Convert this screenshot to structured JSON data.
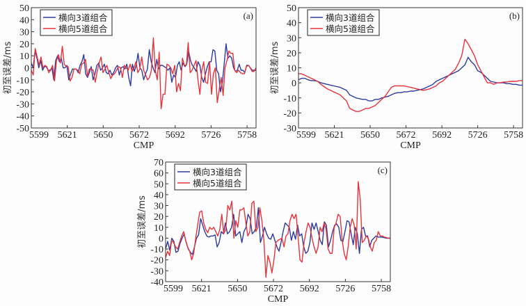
{
  "colors": {
    "blue": "#2b3a9e",
    "red": "#e8323a",
    "axis": "#333333"
  },
  "chart_data": [
    {
      "id": "a",
      "type": "line",
      "panel_label": "(a)",
      "xlabel": "CMP",
      "ylabel": "初至误差/ms",
      "ylim": [
        -50,
        50
      ],
      "yticks": [
        -50,
        -40,
        -30,
        -20,
        -10,
        0,
        10,
        20,
        30,
        40,
        50
      ],
      "xticks": [
        "5599",
        "5621",
        "5650",
        "5672",
        "5692",
        "5726",
        "5758"
      ],
      "x_extent_ticks": 6.25,
      "legend": [
        "横向3道组合",
        "横向5道组合"
      ],
      "legend_position": "top-left",
      "series": [
        {
          "name": "横向3道组合",
          "color_key": "blue",
          "values": [
            4,
            0,
            14,
            8,
            0,
            6,
            -2,
            1,
            1,
            -2,
            -2,
            0,
            -10,
            6,
            10,
            5,
            8,
            0,
            0,
            2,
            -10,
            -5,
            -1,
            -1,
            -1,
            -4,
            2,
            5,
            11,
            -5,
            -8,
            -4,
            1,
            -10,
            -5,
            2,
            4,
            -2,
            0,
            3,
            -4,
            -5,
            -2,
            -6,
            -4,
            0,
            2,
            -6,
            0,
            1,
            -1,
            3,
            -8,
            -15,
            3,
            -3,
            2,
            12,
            0,
            -2,
            -10,
            -5,
            -1,
            15,
            5,
            0,
            -4,
            7,
            -1,
            2,
            2,
            1,
            0,
            -2,
            0,
            -12,
            -6,
            -8,
            2,
            5,
            -2,
            4,
            1,
            3,
            14,
            6,
            2,
            0,
            -3,
            5,
            2,
            -8,
            -12,
            -5,
            1,
            5,
            5,
            15,
            14,
            -2,
            -5,
            -20,
            -12,
            3,
            20,
            8,
            10,
            8,
            0,
            -3,
            -2,
            3,
            -2,
            -2,
            -4,
            2,
            2,
            0,
            -2,
            -2,
            -2
          ]
        },
        {
          "name": "横向5道组合",
          "color_key": "red",
          "values": [
            -2,
            -6,
            16,
            9,
            2,
            9,
            0,
            2,
            1,
            -4,
            -2,
            2,
            -11,
            6,
            11,
            4,
            18,
            3,
            1,
            1,
            -11,
            -8,
            -1,
            -1,
            -2,
            -5,
            3,
            4,
            7,
            -7,
            -1,
            -1,
            -2,
            -12,
            -3,
            4,
            9,
            -4,
            -1,
            2,
            -4,
            -9,
            -6,
            -5,
            -2,
            1,
            0,
            -8,
            2,
            0,
            -2,
            3,
            -3,
            0,
            5,
            -4,
            -1,
            9,
            -2,
            -6,
            -10,
            -8,
            -2,
            25,
            -2,
            -10,
            13,
            -34,
            -22,
            -22,
            3,
            2,
            0,
            -5,
            2,
            -20,
            -13,
            -19,
            8,
            2,
            2,
            21,
            -4,
            -2,
            2,
            6,
            -10,
            -22,
            -2,
            5,
            -12,
            -13,
            5,
            -22,
            -5,
            0,
            -29,
            -18,
            -8,
            -23,
            0,
            6,
            14,
            12,
            12,
            -2,
            -4,
            -2,
            -4,
            -5,
            -5,
            1,
            2,
            0,
            -3,
            -3,
            0
          ]
        }
      ]
    },
    {
      "id": "b",
      "type": "line",
      "panel_label": "(b)",
      "xlabel": "CMP",
      "ylabel": "初至误差/ms",
      "ylim": [
        -30,
        50
      ],
      "yticks": [
        -30,
        -20,
        -10,
        0,
        10,
        20,
        30,
        40,
        50
      ],
      "xticks": [
        "5599",
        "5621",
        "5650",
        "5672",
        "5692",
        "5726",
        "5758"
      ],
      "x_extent_ticks": 6.25,
      "legend": [
        "横向3道组合",
        "横向5道组合"
      ],
      "legend_position": "top-left",
      "series": [
        {
          "name": "横向3道组合",
          "color_key": "blue",
          "values": [
            2,
            3,
            3,
            2,
            1.5,
            1.5,
            1,
            0,
            -0.5,
            -1,
            -1.5,
            -2,
            -2.5,
            -3,
            -4,
            -5,
            -8,
            -9,
            -10,
            -10.5,
            -11,
            -11,
            -12,
            -12,
            -11,
            -11,
            -10,
            -9.5,
            -9,
            -8,
            -7,
            -6.5,
            -6.5,
            -6,
            -6,
            -5.5,
            -5.5,
            -5,
            -4.5,
            -4,
            -3,
            -2,
            -1,
            1,
            2,
            3,
            4,
            5,
            6,
            7,
            8,
            10,
            12,
            17,
            14,
            12,
            8,
            7,
            5,
            3,
            1,
            0.5,
            0,
            0,
            0,
            -0.5,
            -0.5,
            -1,
            -1,
            -1.5,
            -1.5
          ]
        },
        {
          "name": "横向5道组合",
          "color_key": "red",
          "values": [
            6,
            6,
            5,
            4,
            3,
            2,
            1,
            -1,
            -2.5,
            -4,
            -5,
            -6,
            -7,
            -8,
            -10,
            -12,
            -17,
            -18,
            -19,
            -19,
            -18,
            -17,
            -17,
            -16,
            -15,
            -13,
            -11,
            -9,
            -6,
            -3,
            -2,
            -2,
            -2,
            -2,
            -2.5,
            -3,
            -3.5,
            -4,
            -4.5,
            -5,
            -4.5,
            -4,
            -3,
            -2,
            0,
            1,
            3,
            5,
            7,
            9,
            13,
            18,
            29,
            26,
            22,
            18,
            12,
            8,
            4,
            0,
            0,
            -1,
            0,
            0,
            0.5,
            0.5,
            1,
            1,
            1,
            1.5,
            1.5
          ]
        }
      ]
    },
    {
      "id": "c",
      "type": "line",
      "panel_label": "(c)",
      "xlabel": "CMP",
      "ylabel": "初至误差/ms",
      "ylim": [
        -40,
        70
      ],
      "yticks": [
        -40,
        -30,
        -20,
        -10,
        0,
        10,
        20,
        30,
        40,
        50,
        60,
        70
      ],
      "xticks": [
        "5599",
        "5621",
        "5650",
        "5672",
        "5692",
        "5726",
        "5758"
      ],
      "x_extent_ticks": 6.25,
      "legend": [
        "横向3道组合",
        "横向5道组合"
      ],
      "legend_position": "top-left",
      "series": [
        {
          "name": "横向3道组合",
          "color_key": "blue",
          "values": [
            -10,
            -3,
            -11,
            0,
            -3,
            -13,
            -12,
            -5,
            0,
            4,
            -4,
            -10,
            -13,
            -15,
            -8,
            0,
            3,
            18,
            12,
            6,
            2,
            1,
            2,
            2,
            3,
            -8,
            -4,
            6,
            4,
            14,
            4,
            6,
            10,
            22,
            2,
            4,
            6,
            -4,
            6,
            10,
            22,
            18,
            4,
            6,
            10,
            28,
            -4,
            2,
            10,
            4,
            0,
            -1,
            4,
            -2,
            -8,
            -12,
            -4,
            6,
            14,
            12,
            10,
            -2,
            6,
            -1,
            12,
            2,
            4,
            -8,
            -14,
            -12,
            -4,
            14,
            8,
            14,
            6,
            -2,
            -6,
            15,
            12,
            -8,
            -2,
            6,
            12,
            13,
            10,
            -2,
            -3,
            6,
            16,
            15,
            4,
            -6,
            10,
            4,
            -14,
            8,
            10,
            2,
            2,
            -8,
            -2,
            0,
            2,
            1,
            1,
            1,
            0.5,
            0,
            0,
            0
          ]
        },
        {
          "name": "横向5道组合",
          "color_key": "red",
          "values": [
            -18,
            -12,
            -16,
            -2,
            -4,
            -8,
            -10,
            -4,
            2,
            6,
            -2,
            -8,
            -12,
            -20,
            -14,
            0,
            12,
            24,
            25,
            14,
            8,
            5,
            10,
            8,
            10,
            6,
            2,
            8,
            22,
            4,
            8,
            30,
            26,
            34,
            0,
            16,
            10,
            26,
            26,
            28,
            14,
            2,
            6,
            32,
            34,
            6,
            10,
            28,
            16,
            -2,
            -36,
            -16,
            -22,
            -32,
            -20,
            -4,
            -2,
            -1,
            0,
            -8,
            2,
            4,
            16,
            22,
            18,
            22,
            2,
            -20,
            -22,
            -4,
            6,
            14,
            10,
            0,
            -8,
            -14,
            -8,
            10,
            6,
            14,
            8,
            -10,
            -14,
            -14,
            10,
            14,
            22,
            20,
            -2,
            -14,
            -20,
            -8,
            10,
            18,
            12,
            -10,
            52,
            36,
            -4,
            -2,
            2,
            0,
            -8,
            -12,
            -4,
            -2,
            6,
            2,
            2,
            1,
            0.5,
            0,
            0
          ]
        }
      ]
    }
  ]
}
